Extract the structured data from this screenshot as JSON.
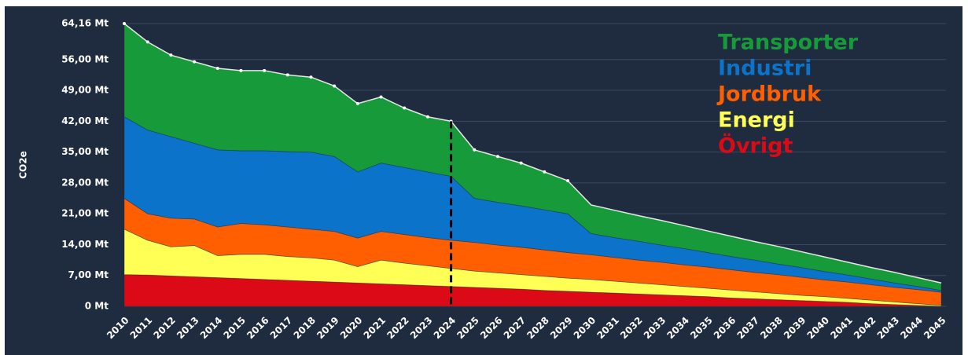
{
  "chart_data": {
    "type": "stacked_area",
    "ylabel": "CO2e",
    "categories": [
      "2010",
      "2011",
      "2012",
      "2013",
      "2014",
      "2015",
      "2016",
      "2017",
      "2018",
      "2019",
      "2020",
      "2021",
      "2022",
      "2023",
      "2024",
      "2025",
      "2026",
      "2027",
      "2028",
      "2029",
      "2030",
      "2031",
      "2032",
      "2033",
      "2034",
      "2035",
      "2036",
      "2037",
      "2038",
      "2039",
      "2040",
      "2041",
      "2042",
      "2043",
      "2044",
      "2045"
    ],
    "series": [
      {
        "name": "Övrigt",
        "color": "#dc0a16",
        "values": [
          7.2,
          7.1,
          6.9,
          6.7,
          6.5,
          6.3,
          6.1,
          5.9,
          5.7,
          5.5,
          5.3,
          5.1,
          4.9,
          4.7,
          4.5,
          4.3,
          4.1,
          3.9,
          3.6,
          3.4,
          3.2,
          3.0,
          2.8,
          2.6,
          2.4,
          2.2,
          1.9,
          1.7,
          1.5,
          1.3,
          1.1,
          0.9,
          0.6,
          0.4,
          0.2,
          0
        ]
      },
      {
        "name": "Energi",
        "color": "#ffff55",
        "values": [
          10.3,
          7.9,
          6.6,
          7.1,
          5,
          5.5,
          5.7,
          5.4,
          5.3,
          5,
          3.7,
          5.4,
          4.9,
          4.5,
          4.1,
          3.7,
          3.5,
          3.3,
          3.2,
          3.0,
          2.9,
          2.7,
          2.5,
          2.3,
          2.1,
          1.9,
          1.8,
          1.6,
          1.4,
          1.2,
          1.1,
          0.9,
          0.8,
          0.6,
          0.4,
          0.2
        ]
      },
      {
        "name": "Jordbruk",
        "color": "#ff5f00",
        "values": [
          7,
          6,
          6.5,
          6,
          6.5,
          7,
          6.7,
          6.7,
          6.5,
          6.5,
          6.5,
          6.5,
          6.5,
          6.4,
          6.4,
          6.5,
          6.3,
          6.2,
          6.0,
          5.8,
          5.6,
          5.4,
          5.2,
          5.1,
          4.9,
          4.8,
          4.6,
          4.4,
          4.3,
          4.1,
          3.8,
          3.7,
          3.5,
          3.3,
          3.2,
          3.0
        ]
      },
      {
        "name": "Industri",
        "color": "#0b73c9",
        "values": [
          18.5,
          19,
          18.5,
          17.2,
          17.5,
          16.5,
          16.8,
          17.1,
          17.5,
          17,
          15,
          15.5,
          15.2,
          14.9,
          14.5,
          10.0,
          9.7,
          9.4,
          9.1,
          8.8,
          4.8,
          4.5,
          4.3,
          3.9,
          3.7,
          3.3,
          3.0,
          2.8,
          2.4,
          2.2,
          1.9,
          1.6,
          1.3,
          1.0,
          0.7,
          0.4
        ]
      },
      {
        "name": "Transporter",
        "color": "#179a3a",
        "values": [
          21.16,
          20,
          18.5,
          18.5,
          18.5,
          18.2,
          18.2,
          17.4,
          17,
          16,
          15.5,
          15,
          13.5,
          12.5,
          12.5,
          11.0,
          10.4,
          9.7,
          8.6,
          7.5,
          6.5,
          6.2,
          5.8,
          5.6,
          5.2,
          4.9,
          4.6,
          4.2,
          4.0,
          3.6,
          3.3,
          2.9,
          2.6,
          2.4,
          2.0,
          1.7
        ]
      }
    ],
    "ylim": [
      0,
      64.16
    ],
    "yticks": [
      {
        "value": 0,
        "label": "0 Mt"
      },
      {
        "value": 7,
        "label": "7,00 Mt"
      },
      {
        "value": 14,
        "label": "14,00 Mt"
      },
      {
        "value": 21,
        "label": "21,00 Mt"
      },
      {
        "value": 28,
        "label": "28,00 Mt"
      },
      {
        "value": 35,
        "label": "35,00 Mt"
      },
      {
        "value": 42,
        "label": "42,00 Mt"
      },
      {
        "value": 49,
        "label": "49,00 Mt"
      },
      {
        "value": 56,
        "label": "56,00 Mt"
      },
      {
        "value": 64.16,
        "label": "64,16 Mt"
      }
    ],
    "grid": true,
    "legend": "top-right"
  }
}
